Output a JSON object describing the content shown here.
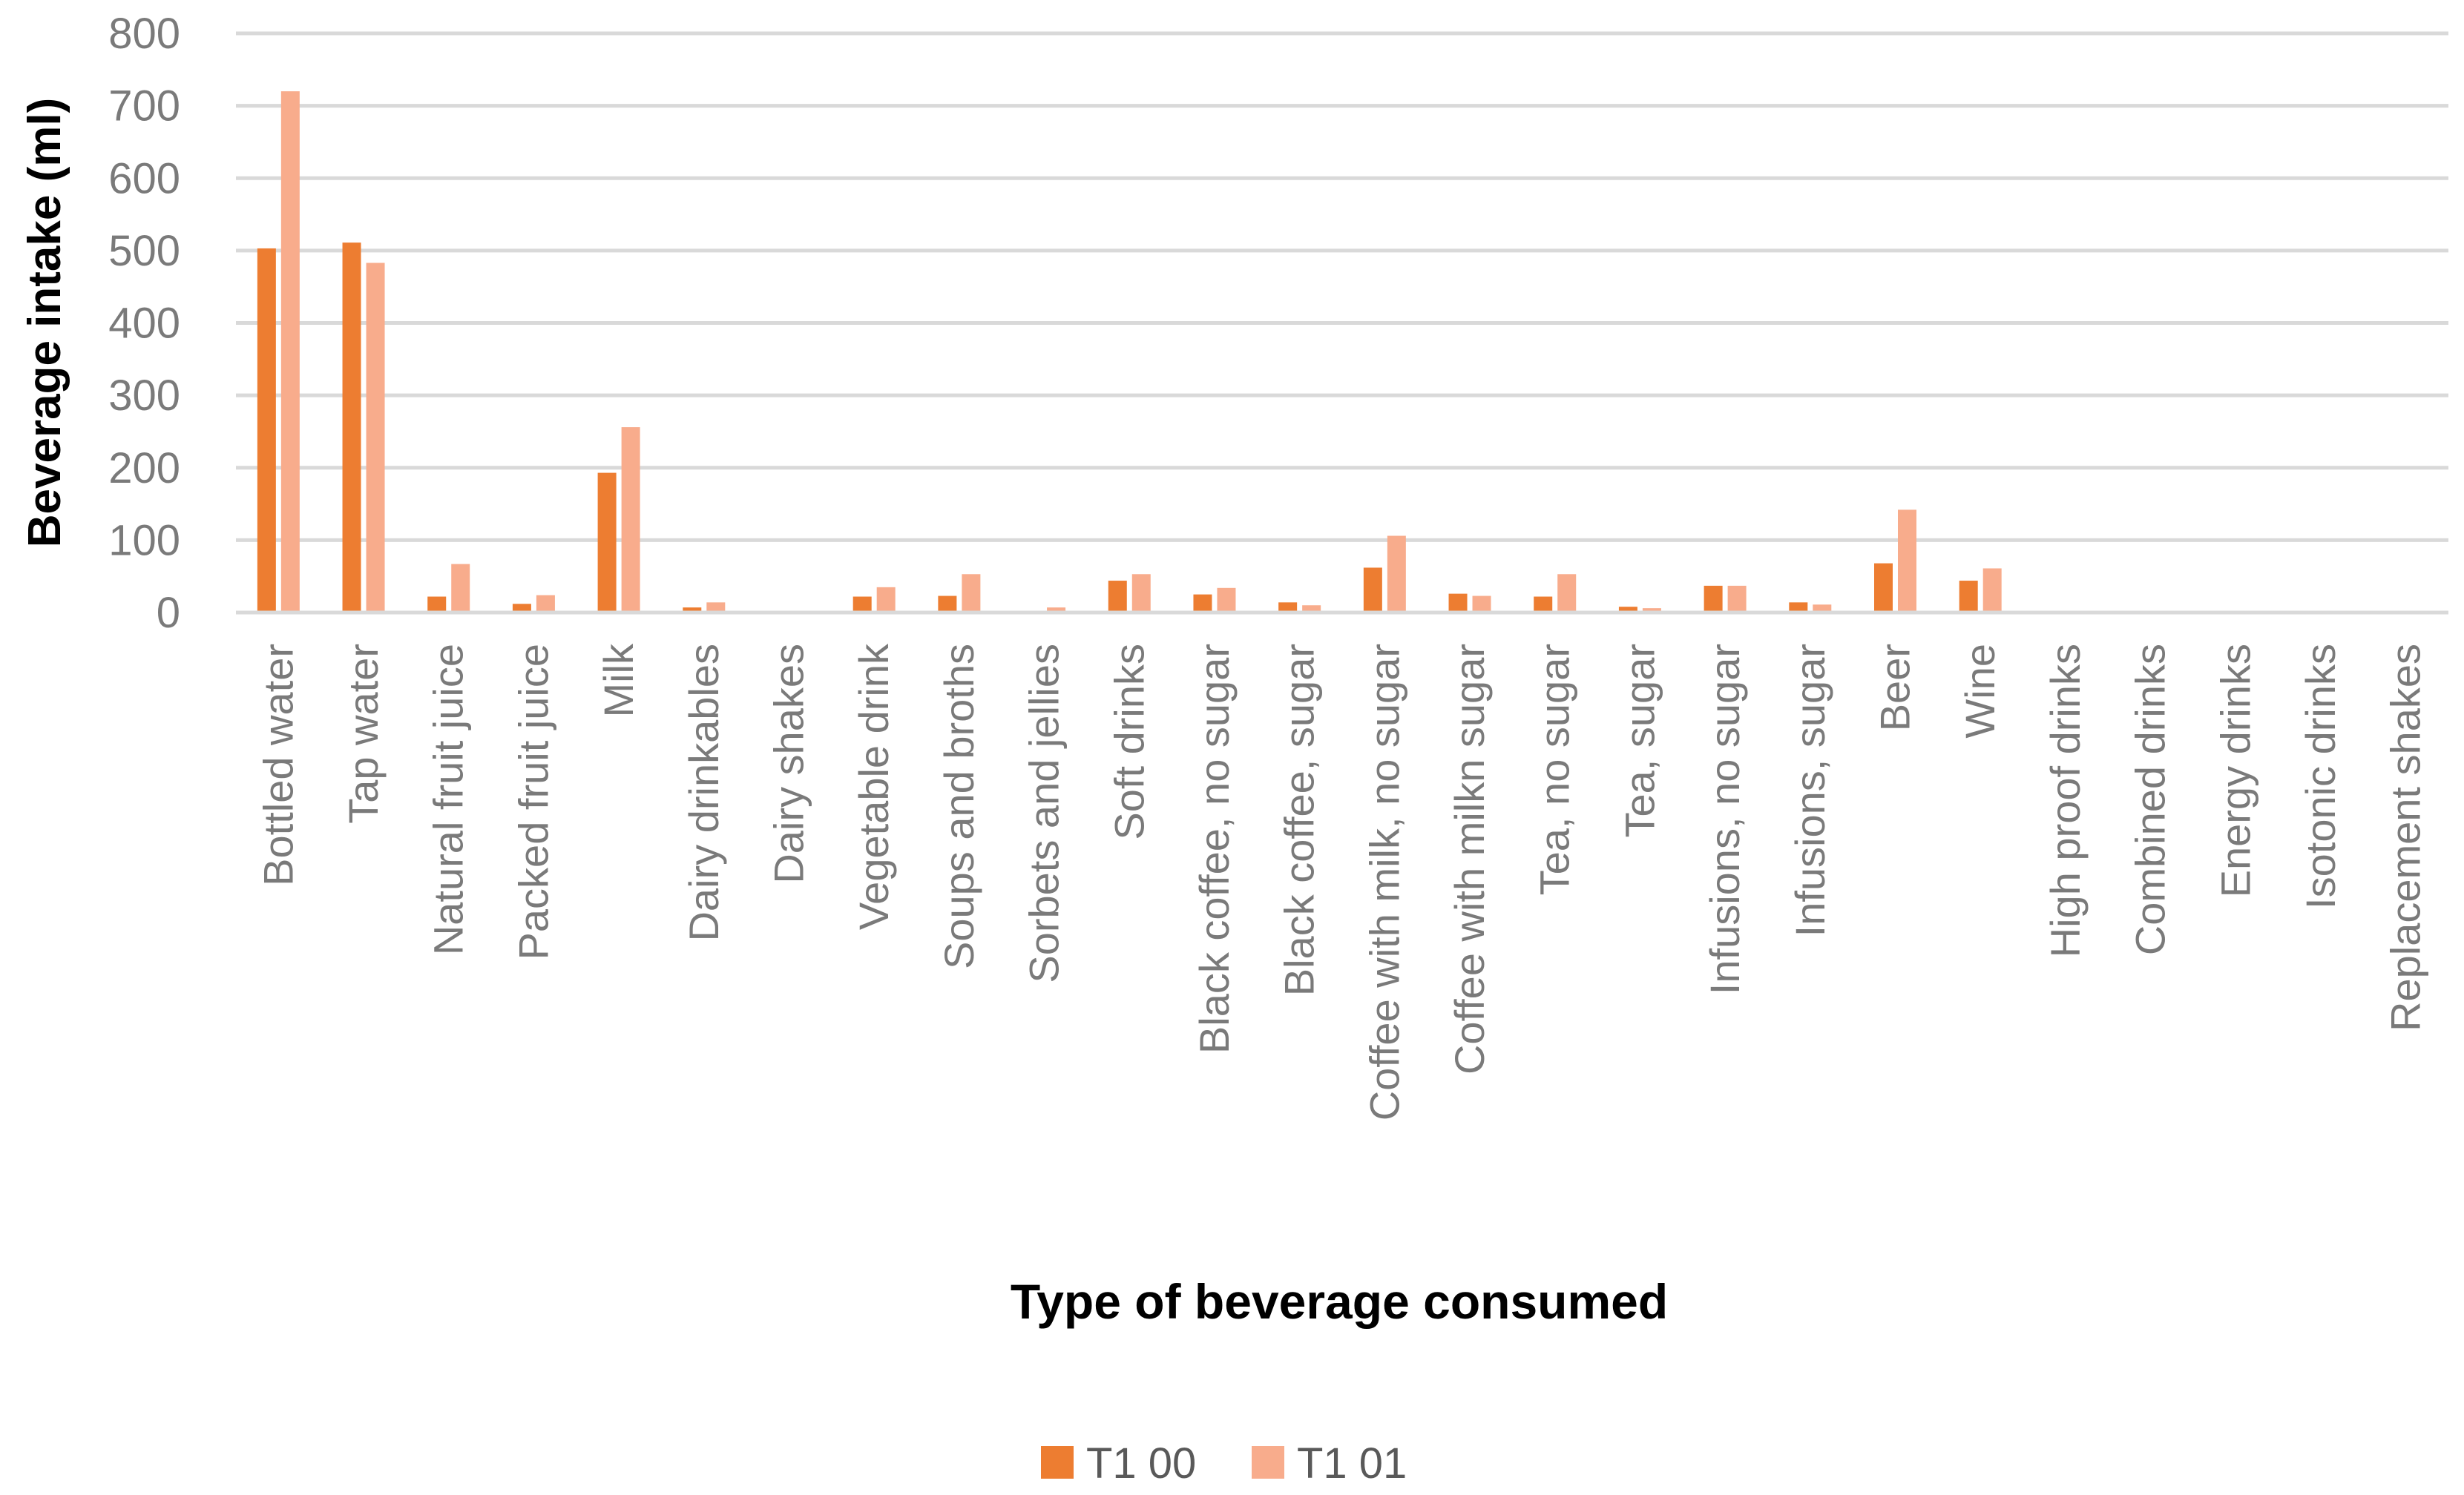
{
  "chart_data": {
    "type": "bar",
    "title": "",
    "xlabel": "Type of beverage consumed",
    "ylabel": "Beverage intake (ml)",
    "ylim": [
      0,
      800
    ],
    "yticks": [
      0,
      100,
      200,
      300,
      400,
      500,
      600,
      700,
      800
    ],
    "grid": true,
    "legend_position": "bottom",
    "categories": [
      "Bottled water",
      "Tap water",
      "Natural fruit juice",
      "Packed fruit juice",
      "Milk",
      "Dairy drinkables",
      "Dairy shakes",
      "Vegetable drink",
      "Soups and broths",
      "Sorbets and jellies",
      "Soft drinks",
      "Black coffee, no sugar",
      "Black coffee,  sugar",
      "Coffee with milk, no sugar",
      "Coffee with milkn sugar",
      "Tea, no sugar",
      "Tea, sugar",
      "Infusions, no sugar",
      "Infusions, sugar",
      "Beer",
      "Wine",
      "High proof drinks",
      "Combined drinks",
      "Energy drinks",
      "Isotonic drinks",
      "Replacement shakes"
    ],
    "series": [
      {
        "name": "T1 00",
        "color": "#ed7d31",
        "values": [
          503,
          511,
          22,
          12,
          193,
          7,
          0,
          22,
          23,
          0,
          44,
          25,
          14,
          62,
          26,
          22,
          8,
          37,
          14,
          68,
          44,
          0,
          0,
          0,
          0,
          0
        ]
      },
      {
        "name": "T1 01",
        "color": "#f8ac8c",
        "values": [
          720,
          483,
          67,
          24,
          256,
          14,
          0,
          35,
          53,
          7,
          53,
          34,
          10,
          106,
          23,
          53,
          6,
          37,
          11,
          142,
          61,
          0,
          0,
          0,
          0,
          0
        ]
      }
    ]
  }
}
